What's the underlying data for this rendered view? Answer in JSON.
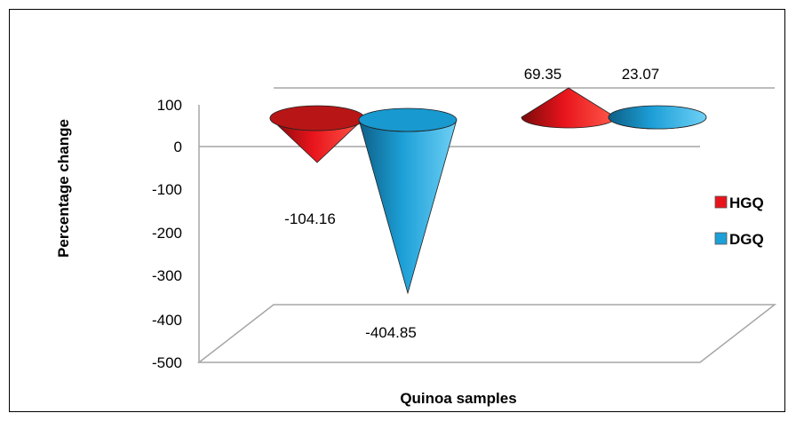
{
  "chart_data": {
    "type": "bar",
    "style": "3d-cone",
    "categories": [
      "HGQ",
      "DGQ"
    ],
    "series": [
      {
        "name": "HGQ",
        "values": [
          -104.16,
          69.35
        ],
        "color": "#e8141c"
      },
      {
        "name": "DGQ",
        "values": [
          -404.85,
          23.07
        ],
        "color": "#1da0d8"
      }
    ],
    "data_labels": [
      "-104.16",
      "-404.85",
      "69.35",
      "23.07"
    ],
    "xlabel": "Quinoa samples",
    "ylabel": "Percentage change",
    "ylim": [
      -500,
      100
    ],
    "yticks": [
      "100",
      "0",
      "-100",
      "-200",
      "-300",
      "-400",
      "-500"
    ],
    "legend": {
      "position": "right",
      "entries": [
        "HGQ",
        "DGQ"
      ]
    },
    "grid": false
  }
}
